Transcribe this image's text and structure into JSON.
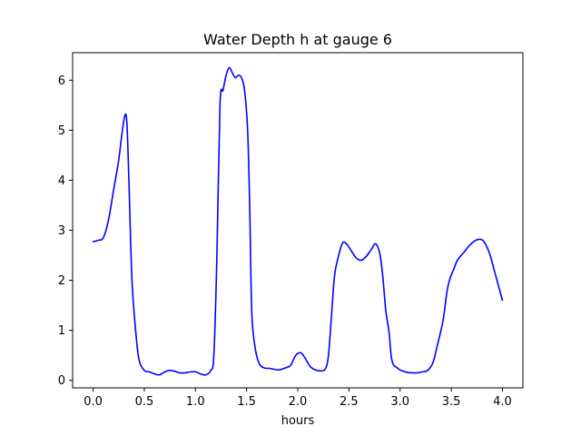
{
  "chart_data": {
    "type": "line",
    "title": "Water Depth h at gauge 6",
    "xlabel": "hours",
    "ylabel": "",
    "xlim": [
      -0.2,
      4.2
    ],
    "ylim": [
      -0.15,
      6.55
    ],
    "xticks": [
      0.0,
      0.5,
      1.0,
      1.5,
      2.0,
      2.5,
      3.0,
      3.5,
      4.0
    ],
    "xtick_labels": [
      "0.0",
      "0.5",
      "1.0",
      "1.5",
      "2.0",
      "2.5",
      "3.0",
      "3.5",
      "4.0"
    ],
    "yticks": [
      0,
      1,
      2,
      3,
      4,
      5,
      6
    ],
    "ytick_labels": [
      "0",
      "1",
      "2",
      "3",
      "4",
      "5",
      "6"
    ],
    "grid": false,
    "series": [
      {
        "color": "#0000ff",
        "points": [
          [
            0.0,
            2.77
          ],
          [
            0.05,
            2.8
          ],
          [
            0.1,
            2.85
          ],
          [
            0.15,
            3.2
          ],
          [
            0.2,
            3.8
          ],
          [
            0.25,
            4.4
          ],
          [
            0.28,
            4.9
          ],
          [
            0.31,
            5.29
          ],
          [
            0.33,
            5.15
          ],
          [
            0.35,
            4.0
          ],
          [
            0.38,
            2.0
          ],
          [
            0.42,
            0.9
          ],
          [
            0.45,
            0.4
          ],
          [
            0.5,
            0.2
          ],
          [
            0.55,
            0.17
          ],
          [
            0.6,
            0.13
          ],
          [
            0.65,
            0.11
          ],
          [
            0.7,
            0.17
          ],
          [
            0.75,
            0.2
          ],
          [
            0.8,
            0.18
          ],
          [
            0.85,
            0.15
          ],
          [
            0.9,
            0.15
          ],
          [
            0.95,
            0.17
          ],
          [
            1.0,
            0.17
          ],
          [
            1.05,
            0.13
          ],
          [
            1.1,
            0.11
          ],
          [
            1.15,
            0.2
          ],
          [
            1.18,
            0.5
          ],
          [
            1.21,
            2.5
          ],
          [
            1.24,
            5.5
          ],
          [
            1.27,
            5.8
          ],
          [
            1.3,
            6.1
          ],
          [
            1.33,
            6.25
          ],
          [
            1.36,
            6.15
          ],
          [
            1.39,
            6.05
          ],
          [
            1.42,
            6.1
          ],
          [
            1.45,
            6.05
          ],
          [
            1.48,
            5.8
          ],
          [
            1.51,
            5.0
          ],
          [
            1.53,
            3.5
          ],
          [
            1.55,
            1.4
          ],
          [
            1.58,
            0.7
          ],
          [
            1.62,
            0.35
          ],
          [
            1.67,
            0.25
          ],
          [
            1.72,
            0.24
          ],
          [
            1.77,
            0.22
          ],
          [
            1.82,
            0.21
          ],
          [
            1.88,
            0.25
          ],
          [
            1.93,
            0.3
          ],
          [
            1.98,
            0.5
          ],
          [
            2.03,
            0.55
          ],
          [
            2.07,
            0.45
          ],
          [
            2.12,
            0.28
          ],
          [
            2.17,
            0.21
          ],
          [
            2.22,
            0.19
          ],
          [
            2.27,
            0.23
          ],
          [
            2.3,
            0.5
          ],
          [
            2.33,
            1.3
          ],
          [
            2.36,
            2.1
          ],
          [
            2.4,
            2.5
          ],
          [
            2.44,
            2.75
          ],
          [
            2.48,
            2.72
          ],
          [
            2.52,
            2.6
          ],
          [
            2.57,
            2.45
          ],
          [
            2.62,
            2.4
          ],
          [
            2.67,
            2.48
          ],
          [
            2.72,
            2.62
          ],
          [
            2.76,
            2.73
          ],
          [
            2.8,
            2.55
          ],
          [
            2.83,
            2.1
          ],
          [
            2.86,
            1.4
          ],
          [
            2.89,
            1.0
          ],
          [
            2.92,
            0.4
          ],
          [
            2.97,
            0.25
          ],
          [
            3.02,
            0.19
          ],
          [
            3.07,
            0.16
          ],
          [
            3.12,
            0.15
          ],
          [
            3.17,
            0.15
          ],
          [
            3.22,
            0.17
          ],
          [
            3.27,
            0.2
          ],
          [
            3.32,
            0.35
          ],
          [
            3.37,
            0.75
          ],
          [
            3.42,
            1.2
          ],
          [
            3.46,
            1.8
          ],
          [
            3.49,
            2.05
          ],
          [
            3.52,
            2.2
          ],
          [
            3.56,
            2.4
          ],
          [
            3.62,
            2.55
          ],
          [
            3.68,
            2.7
          ],
          [
            3.74,
            2.8
          ],
          [
            3.8,
            2.81
          ],
          [
            3.84,
            2.7
          ],
          [
            3.88,
            2.5
          ],
          [
            3.92,
            2.2
          ],
          [
            3.96,
            1.9
          ],
          [
            4.0,
            1.6
          ]
        ]
      }
    ]
  }
}
